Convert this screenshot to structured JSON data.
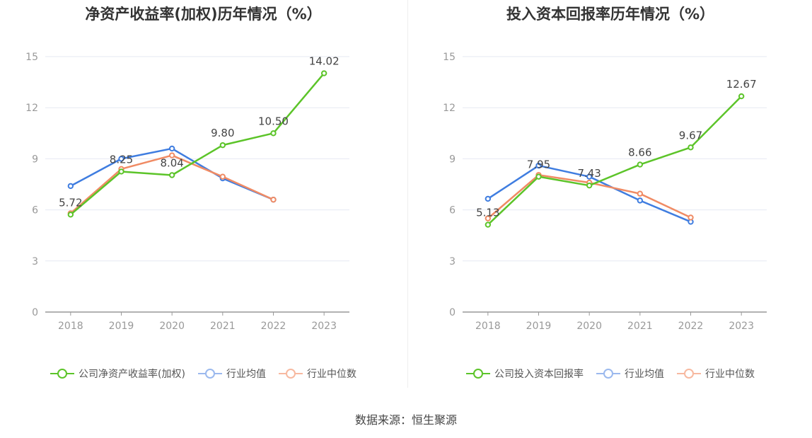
{
  "source": "数据来源：恒生聚源",
  "colors": {
    "company": "#5cc429",
    "avg": "#3f7de0",
    "median": "#f08b64",
    "grid": "#e6e9f2",
    "axis": "#999999"
  },
  "chart_data": [
    {
      "type": "line",
      "title": "净资产收益率(加权)历年情况（%）",
      "categories": [
        "2018",
        "2019",
        "2020",
        "2021",
        "2022",
        "2023"
      ],
      "ylim": [
        0,
        15
      ],
      "yticks": [
        "0",
        "3",
        "6",
        "9",
        "12",
        "15"
      ],
      "grid": true,
      "legend_position": "bottom",
      "series": [
        {
          "name": "公司净资产收益率(加权)",
          "key": "company",
          "values": [
            5.72,
            8.25,
            8.04,
            9.8,
            10.5,
            14.02
          ],
          "labels": [
            "5.72",
            "8.25",
            "8.04",
            "9.80",
            "10.50",
            "14.02"
          ]
        },
        {
          "name": "行业均值",
          "key": "avg",
          "values": [
            7.4,
            9.0,
            9.6,
            7.85,
            6.6,
            null
          ]
        },
        {
          "name": "行业中位数",
          "key": "median",
          "values": [
            5.8,
            8.4,
            9.2,
            7.95,
            6.6,
            null
          ]
        }
      ]
    },
    {
      "type": "line",
      "title": "投入资本回报率历年情况（%）",
      "categories": [
        "2018",
        "2019",
        "2020",
        "2021",
        "2022",
        "2023"
      ],
      "ylim": [
        0,
        15
      ],
      "yticks": [
        "0",
        "3",
        "6",
        "9",
        "12",
        "15"
      ],
      "grid": true,
      "legend_position": "bottom",
      "series": [
        {
          "name": "公司投入资本回报率",
          "key": "company",
          "values": [
            5.13,
            7.95,
            7.43,
            8.66,
            9.67,
            12.67
          ],
          "labels": [
            "5.13",
            "7.95",
            "7.43",
            "8.66",
            "9.67",
            "12.67"
          ]
        },
        {
          "name": "行业均值",
          "key": "avg",
          "values": [
            6.65,
            8.6,
            7.95,
            6.55,
            5.3,
            null
          ]
        },
        {
          "name": "行业中位数",
          "key": "median",
          "values": [
            5.5,
            8.05,
            7.6,
            6.95,
            5.55,
            null
          ]
        }
      ]
    }
  ]
}
